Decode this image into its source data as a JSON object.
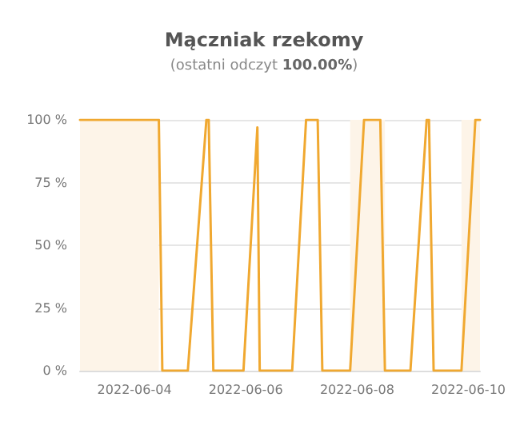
{
  "chart_data": {
    "type": "line",
    "title": "Mączniak rzekomy",
    "subtitle": "(ostatni odczyt 100.00%)",
    "x": [
      "2022-06-03T00:30",
      "2022-06-04T10:30",
      "2022-06-04T12:00",
      "2022-06-04T23:00",
      "2022-06-05T07:00",
      "2022-06-05T08:00",
      "2022-06-05T10:00",
      "2022-06-05T23:00",
      "2022-06-06T05:00",
      "2022-06-06T06:00",
      "2022-06-06T20:00",
      "2022-06-07T02:00",
      "2022-06-07T07:00",
      "2022-06-07T09:00",
      "2022-06-07T21:00",
      "2022-06-08T03:00",
      "2022-06-08T10:00",
      "2022-06-08T12:00",
      "2022-06-08T23:00",
      "2022-06-09T06:00",
      "2022-06-09T07:00",
      "2022-06-09T09:00",
      "2022-06-09T21:00",
      "2022-06-10T03:00",
      "2022-06-10T05:00"
    ],
    "series": [
      {
        "color": "#f0a830",
        "values": [
          100,
          100,
          0,
          0,
          100,
          100,
          0,
          0,
          97,
          0,
          0,
          100,
          100,
          0,
          0,
          100,
          100,
          0,
          0,
          100,
          100,
          0,
          0,
          100,
          100
        ]
      }
    ],
    "xlim": [
      "2022-06-03T00:30",
      "2022-06-10T05:00"
    ],
    "xticks": [
      "2022-06-04",
      "2022-06-06",
      "2022-06-08",
      "2022-06-10"
    ],
    "ylim": [
      0,
      100
    ],
    "yticks": [
      {
        "value": 0,
        "label": "0 %"
      },
      {
        "value": 25,
        "label": "25 %"
      },
      {
        "value": 50,
        "label": "50 %"
      },
      {
        "value": 75,
        "label": "75 %"
      },
      {
        "value": 100,
        "label": "100 %"
      }
    ],
    "bands": [
      {
        "axis": "x",
        "from": "2022-06-03T00:30",
        "to": "2022-06-04T10:30",
        "color": "#fdf4e8"
      },
      {
        "axis": "x",
        "from": "2022-06-07T21:00",
        "to": "2022-06-08T12:00",
        "color": "#fdf4e8"
      },
      {
        "axis": "x",
        "from": "2022-06-09T21:00",
        "to": "2022-06-10T05:00",
        "color": "#fdf4e8"
      }
    ],
    "grid": "y",
    "marker": "none",
    "line_style": "solid"
  }
}
